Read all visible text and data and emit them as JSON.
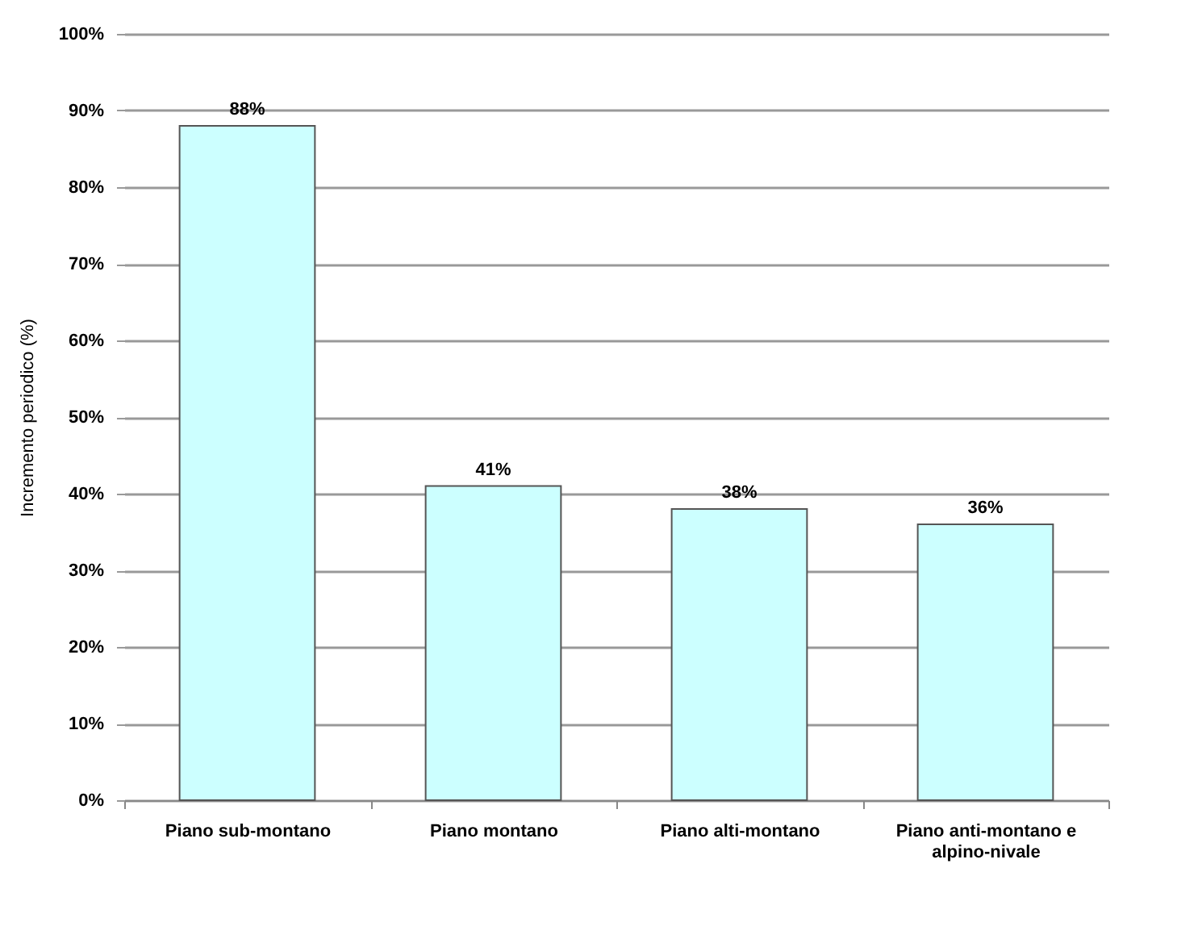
{
  "chart_data": {
    "type": "bar",
    "ylabel": "Incremento periodico (%)",
    "categories": [
      "Piano sub-montano",
      "Piano montano",
      "Piano alti-montano",
      "Piano anti-montano e alpino-nivale"
    ],
    "values": [
      88,
      41,
      38,
      36
    ],
    "color": "#ccffff",
    "value_labels": [
      "88%",
      "41%",
      "38%",
      "36%"
    ],
    "ylim": [
      0,
      100
    ],
    "yticks": [
      {
        "value": 0,
        "label": "0%"
      },
      {
        "value": 10,
        "label": "10%"
      },
      {
        "value": 20,
        "label": "20%"
      },
      {
        "value": 30,
        "label": "30%"
      },
      {
        "value": 40,
        "label": "40%"
      },
      {
        "value": 50,
        "label": "50%"
      },
      {
        "value": 60,
        "label": "60%"
      },
      {
        "value": 70,
        "label": "70%"
      },
      {
        "value": 80,
        "label": "80%"
      },
      {
        "value": 90,
        "label": "90%"
      },
      {
        "value": 100,
        "label": "100%"
      }
    ],
    "grid": "y"
  }
}
